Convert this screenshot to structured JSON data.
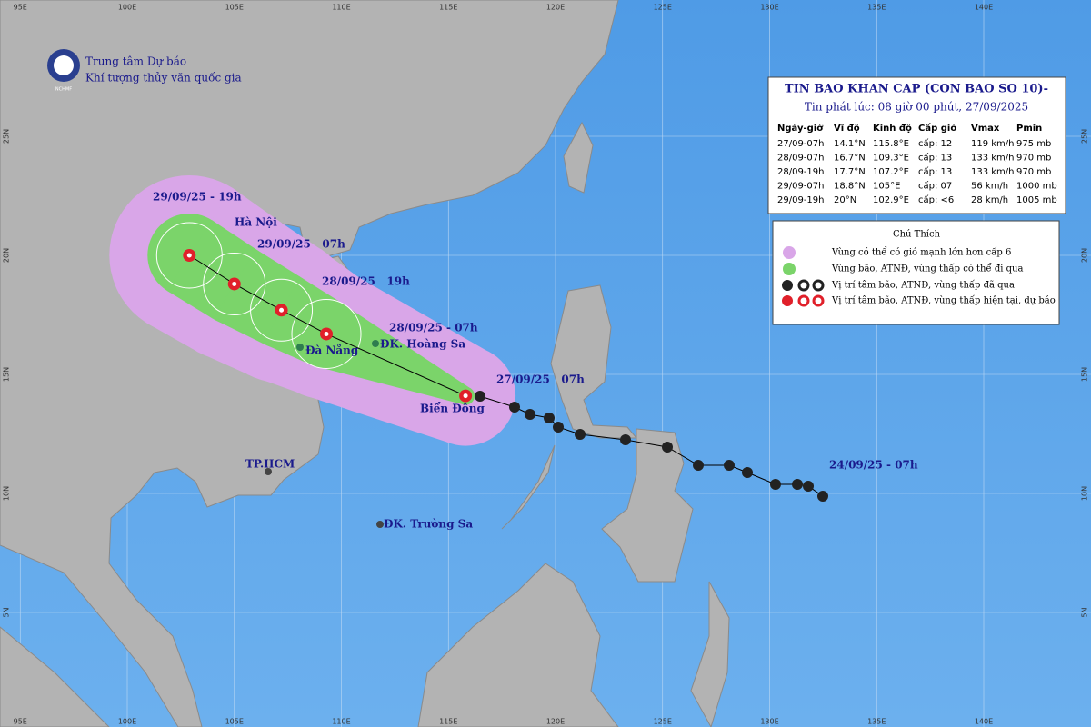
{
  "header": {
    "org_line1": "Trung tâm Dự báo",
    "org_line2": "Khí tượng thủy văn quốc gia",
    "logo_text": "NCHMF"
  },
  "bulletin": {
    "title": "TIN BAO KHAN CAP (CON BAO SO 10)-",
    "issued": "Tin phát lúc: 08 giờ 00 phút, 27/09/2025",
    "columns": [
      "Ngày-giờ",
      "Vĩ độ",
      "Kinh độ",
      "Cấp gió",
      "Vmax",
      "Pmin"
    ],
    "rows": [
      [
        "27/09-07h",
        "14.1°N",
        "115.8°E",
        "cấp: 12",
        "119 km/h",
        "975 mb"
      ],
      [
        "28/09-07h",
        "16.7°N",
        "109.3°E",
        "cấp: 13",
        "133 km/h",
        "970 mb"
      ],
      [
        "28/09-19h",
        "17.7°N",
        "107.2°E",
        "cấp: 13",
        "133 km/h",
        "970 mb"
      ],
      [
        "29/09-07h",
        "18.8°N",
        "105°E",
        "cấp: 07",
        "56 km/h",
        "1000 mb"
      ],
      [
        "29/09-19h",
        "20°N",
        "102.9°E",
        "cấp: <6",
        "28 km/h",
        "1005 mb"
      ]
    ]
  },
  "legend": {
    "title": "Chú Thích",
    "items": [
      "Vùng có thể có gió mạnh lớn hơn cấp 6",
      "Vùng bão, ATNĐ, vùng thấp có thể đi qua",
      "Vị trí tâm bão, ATNĐ, vùng thấp đã qua",
      "Vị trí tâm bão, ATNĐ, vùng thấp hiện tại, dự báo"
    ]
  },
  "map_labels": [
    "29/09/25 - 19h",
    "Hà Nội",
    "29/09/25   07h",
    "28/09/25   19h",
    "28/09/25 - 07h",
    "Đà Nẵng",
    "ĐK. Hoàng Sa",
    "27/09/25   07h",
    "Biển Đông",
    "TP.HCM",
    "ĐK. Trường Sa",
    "24/09/25 - 07h"
  ],
  "axes": {
    "lon": [
      "95E",
      "100E",
      "105E",
      "110E",
      "115E",
      "120E",
      "125E",
      "130E",
      "135E",
      "140E"
    ],
    "lat": [
      "25N",
      "20N",
      "15N",
      "10N",
      "5N"
    ]
  }
}
